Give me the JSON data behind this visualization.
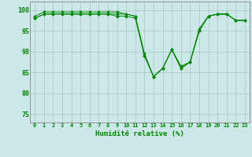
{
  "xlabel": "Humidité relative (%)",
  "background_color": "#cce8e8",
  "grid_color": "#aacccc",
  "line_color": "#008800",
  "marker_color": "#008800",
  "ylim": [
    73,
    102
  ],
  "xlim": [
    -0.5,
    23.5
  ],
  "yticks": [
    75,
    80,
    85,
    90,
    95,
    100
  ],
  "xticks": [
    0,
    1,
    2,
    3,
    4,
    5,
    6,
    7,
    8,
    9,
    10,
    11,
    12,
    13,
    14,
    15,
    16,
    17,
    18,
    19,
    20,
    21,
    22,
    23
  ],
  "series": [
    [
      98.5,
      99.5,
      99.5,
      99.5,
      99.5,
      99.5,
      99.5,
      99.5,
      99.5,
      99.5,
      99.0,
      98.5,
      89.0,
      84.0,
      86.0,
      90.5,
      86.0,
      87.5,
      95.0,
      98.5,
      99.0,
      99.0,
      97.5,
      97.5
    ],
    [
      98.0,
      99.0,
      99.0,
      99.0,
      99.0,
      99.0,
      99.0,
      99.0,
      99.0,
      98.5,
      98.5,
      98.0,
      89.0,
      84.0,
      86.0,
      90.5,
      86.0,
      87.5,
      95.0,
      98.5,
      99.0,
      99.0,
      97.5,
      97.5
    ],
    [
      98.0,
      99.0,
      99.0,
      99.0,
      99.0,
      99.0,
      99.0,
      99.0,
      99.0,
      99.0,
      99.0,
      98.5,
      89.5,
      84.0,
      86.0,
      90.5,
      86.5,
      87.5,
      95.5,
      98.5,
      99.0,
      99.0,
      97.5,
      97.5
    ]
  ]
}
